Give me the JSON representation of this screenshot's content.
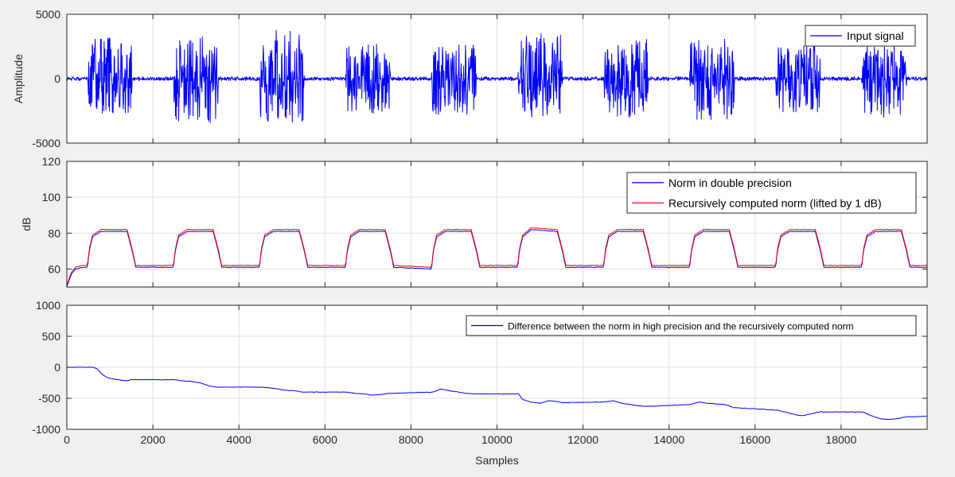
{
  "chart_data": [
    {
      "type": "line",
      "ylabel": "Amplitude",
      "xlabel": "",
      "xlim": [
        0,
        20000
      ],
      "ylim": [
        -5000,
        5000
      ],
      "yticks": [
        -5000,
        0,
        5000
      ],
      "ytick_labels": [
        "-5000",
        "0",
        "5000"
      ],
      "xticks": [
        0,
        2000,
        4000,
        6000,
        8000,
        10000,
        12000,
        14000,
        16000,
        18000
      ],
      "show_xtick_labels": false,
      "grid": true,
      "legend_position": "top-right",
      "series": [
        {
          "name": "Input signal",
          "color": "#0000ff",
          "x": [
            0,
            480,
            500,
            1500,
            1520,
            2480,
            2500,
            3500,
            3520,
            4480,
            4500,
            5500,
            5520,
            6480,
            6500,
            7500,
            7520,
            8480,
            8500,
            9500,
            9520,
            10480,
            10500,
            11500,
            11520,
            12480,
            12500,
            13500,
            13520,
            14480,
            14500,
            15500,
            15520,
            16480,
            16500,
            17500,
            17520,
            18480,
            18500,
            19500,
            19520,
            20000
          ],
          "y_max": [
            150,
            150,
            3200,
            3200,
            150,
            150,
            3300,
            3300,
            150,
            150,
            3900,
            3900,
            150,
            150,
            2700,
            2700,
            150,
            150,
            2700,
            2700,
            150,
            150,
            3500,
            3500,
            150,
            150,
            3100,
            3100,
            150,
            150,
            3100,
            3100,
            150,
            150,
            2800,
            2800,
            150,
            150,
            2700,
            2700,
            150,
            150
          ],
          "y_min": [
            -150,
            -150,
            -2800,
            -2800,
            -150,
            -150,
            -3500,
            -3500,
            -150,
            -150,
            -3400,
            -3400,
            -150,
            -150,
            -2700,
            -2700,
            -150,
            -150,
            -2800,
            -2800,
            -150,
            -150,
            -3000,
            -3000,
            -150,
            -150,
            -3000,
            -3000,
            -150,
            -150,
            -3200,
            -3200,
            -150,
            -150,
            -2600,
            -2600,
            -150,
            -150,
            -3000,
            -3000,
            -150,
            -150
          ]
        }
      ]
    },
    {
      "type": "line",
      "ylabel": "dB",
      "xlabel": "",
      "xlim": [
        0,
        20000
      ],
      "ylim": [
        50,
        120
      ],
      "yticks": [
        60,
        80,
        100,
        120
      ],
      "ytick_labels": [
        "60",
        "80",
        "100",
        "120"
      ],
      "xticks": [
        0,
        2000,
        4000,
        6000,
        8000,
        10000,
        12000,
        14000,
        16000,
        18000
      ],
      "show_xtick_labels": false,
      "grid": true,
      "legend_position": "top-right",
      "series": [
        {
          "name": "Norm in double precision",
          "color": "#0000ff",
          "x": [
            0,
            100,
            200,
            350,
            480,
            520,
            600,
            800,
            1400,
            1520,
            1600,
            2480,
            2520,
            2600,
            2800,
            3400,
            3520,
            3600,
            4480,
            4520,
            4600,
            4800,
            5400,
            5520,
            5600,
            6480,
            6520,
            6600,
            6800,
            7400,
            7520,
            7600,
            8480,
            8520,
            8600,
            8800,
            9400,
            9520,
            9600,
            10480,
            10520,
            10600,
            10800,
            11400,
            11520,
            11600,
            12480,
            12520,
            12600,
            12800,
            13400,
            13520,
            13600,
            14480,
            14520,
            14600,
            14800,
            15400,
            15520,
            15600,
            16480,
            16520,
            16600,
            16800,
            17400,
            17520,
            17600,
            18480,
            18520,
            18600,
            18800,
            19400,
            19520,
            19600,
            20000
          ],
          "y": [
            50,
            57,
            60,
            61,
            61,
            70,
            78,
            81,
            81,
            70,
            61,
            61,
            70,
            78,
            81,
            81,
            70,
            61,
            61,
            70,
            78,
            81,
            81,
            70,
            61,
            61,
            70,
            78,
            81,
            81,
            70,
            61,
            60,
            70,
            78,
            81,
            81,
            70,
            61,
            61,
            70,
            78,
            82,
            81,
            70,
            61,
            61,
            70,
            78,
            81,
            81,
            70,
            61,
            61,
            70,
            78,
            81,
            81,
            70,
            61,
            61,
            70,
            78,
            81,
            81,
            70,
            61,
            61,
            70,
            78,
            81,
            81,
            70,
            61,
            61
          ]
        },
        {
          "name": "Recursively computed norm (lifted by 1 dB)",
          "color": "#ff0000",
          "x": [
            0,
            100,
            200,
            350,
            480,
            520,
            600,
            800,
            1400,
            1520,
            1600,
            2480,
            2520,
            2600,
            2800,
            3400,
            3520,
            3600,
            4480,
            4520,
            4600,
            4800,
            5400,
            5520,
            5600,
            6480,
            6520,
            6600,
            6800,
            7400,
            7520,
            7600,
            8480,
            8520,
            8600,
            8800,
            9400,
            9520,
            9600,
            10480,
            10520,
            10600,
            10800,
            11400,
            11520,
            11600,
            12480,
            12520,
            12600,
            12800,
            13400,
            13520,
            13600,
            14480,
            14520,
            14600,
            14800,
            15400,
            15520,
            15600,
            16480,
            16520,
            16600,
            16800,
            17400,
            17520,
            17600,
            18480,
            18520,
            18600,
            18800,
            19400,
            19520,
            19600,
            20000
          ],
          "y": [
            51,
            58,
            61,
            62,
            62,
            71,
            79,
            82,
            82,
            71,
            62,
            62,
            71,
            79,
            82,
            82,
            71,
            62,
            62,
            71,
            79,
            82,
            82,
            71,
            62,
            62,
            71,
            79,
            82,
            82,
            71,
            62,
            61,
            71,
            79,
            82,
            82,
            71,
            62,
            62,
            71,
            79,
            83,
            82,
            71,
            62,
            62,
            71,
            79,
            82,
            82,
            71,
            62,
            62,
            71,
            79,
            82,
            82,
            71,
            62,
            62,
            71,
            79,
            82,
            82,
            71,
            62,
            62,
            71,
            79,
            82,
            82,
            71,
            62,
            62
          ]
        }
      ]
    },
    {
      "type": "line",
      "ylabel": "",
      "xlabel": "Samples",
      "xlim": [
        0,
        20000
      ],
      "ylim": [
        -1000,
        1000
      ],
      "yticks": [
        -1000,
        -500,
        0,
        500,
        1000
      ],
      "ytick_labels": [
        "-1000",
        "-500",
        "0",
        "500",
        "1000"
      ],
      "xticks": [
        0,
        2000,
        4000,
        6000,
        8000,
        10000,
        12000,
        14000,
        16000,
        18000
      ],
      "xtick_labels": [
        "0",
        "2000",
        "4000",
        "6000",
        "8000",
        "10000",
        "12000",
        "14000",
        "16000",
        "18000"
      ],
      "show_xtick_labels": true,
      "grid": true,
      "legend_position": "top-right",
      "series": [
        {
          "name": "Difference between the norm in high precision and the recursively computed norm",
          "color": "#0000ff",
          "x": [
            0,
            600,
            700,
            800,
            900,
            1000,
            1200,
            1400,
            1500,
            2500,
            2700,
            2900,
            3100,
            3300,
            3500,
            4500,
            4700,
            4900,
            5100,
            5300,
            5500,
            6500,
            6700,
            6900,
            7100,
            7300,
            7500,
            8500,
            8700,
            8900,
            9100,
            9300,
            9500,
            10500,
            10600,
            10800,
            11000,
            11200,
            11400,
            11500,
            12500,
            12700,
            12900,
            13100,
            13300,
            13500,
            14500,
            14700,
            14900,
            15100,
            15300,
            15500,
            16500,
            16700,
            16900,
            17100,
            17300,
            17500,
            18500,
            18700,
            18900,
            19100,
            19300,
            19500,
            20000
          ],
          "y": [
            0,
            0,
            -20,
            -100,
            -150,
            -180,
            -200,
            -220,
            -200,
            -200,
            -220,
            -230,
            -250,
            -300,
            -320,
            -320,
            -330,
            -350,
            -370,
            -380,
            -400,
            -400,
            -420,
            -430,
            -450,
            -440,
            -420,
            -400,
            -350,
            -380,
            -400,
            -420,
            -430,
            -430,
            -520,
            -560,
            -580,
            -540,
            -550,
            -570,
            -560,
            -540,
            -580,
            -600,
            -620,
            -630,
            -600,
            -560,
            -580,
            -590,
            -600,
            -650,
            -690,
            -720,
            -760,
            -780,
            -750,
            -720,
            -720,
            -780,
            -830,
            -840,
            -830,
            -800,
            -790
          ]
        }
      ]
    }
  ]
}
